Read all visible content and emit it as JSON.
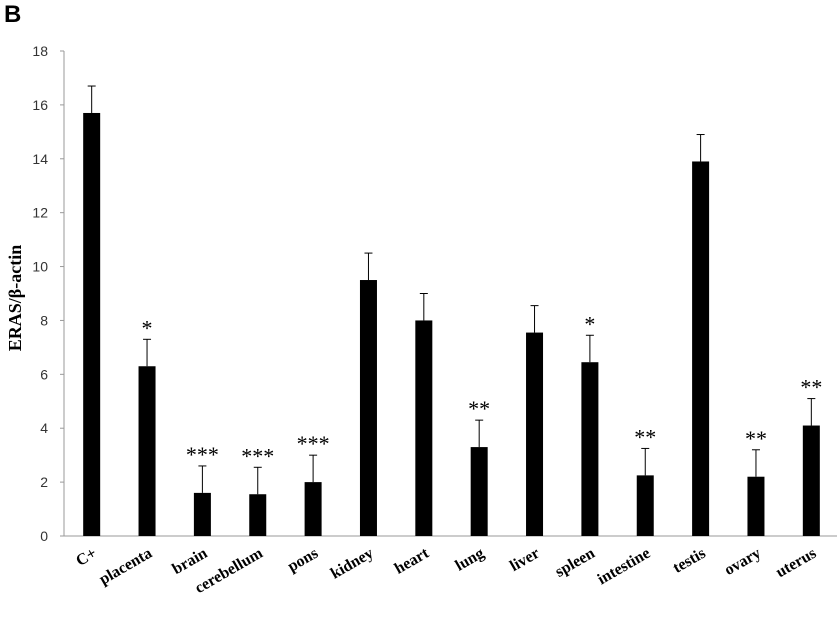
{
  "panel_label": "B",
  "chart_data": {
    "type": "bar",
    "ylabel": "ERAS/β-actin",
    "xlabel": "",
    "ylim": [
      0,
      18
    ],
    "yticks": [
      0,
      2,
      4,
      6,
      8,
      10,
      12,
      14,
      16,
      18
    ],
    "grid": false,
    "bar_color": "#000000",
    "categories": [
      "C+",
      "placenta",
      "brain",
      "cerebellum",
      "pons",
      "kidney",
      "heart",
      "lung",
      "liver",
      "spleen",
      "intestine",
      "testis",
      "ovary",
      "uterus"
    ],
    "values": [
      15.7,
      6.3,
      1.6,
      1.55,
      2.0,
      9.5,
      8.0,
      3.3,
      7.55,
      6.45,
      2.25,
      13.9,
      2.2,
      4.1
    ],
    "errors": [
      1.0,
      1.0,
      1.0,
      1.0,
      1.0,
      1.0,
      1.0,
      1.0,
      1.0,
      1.0,
      1.0,
      1.0,
      1.0,
      1.0
    ],
    "significance": [
      "",
      "*",
      "***",
      "***",
      "***",
      "",
      "",
      "**",
      "",
      "*",
      "**",
      "",
      "**",
      "**"
    ]
  }
}
